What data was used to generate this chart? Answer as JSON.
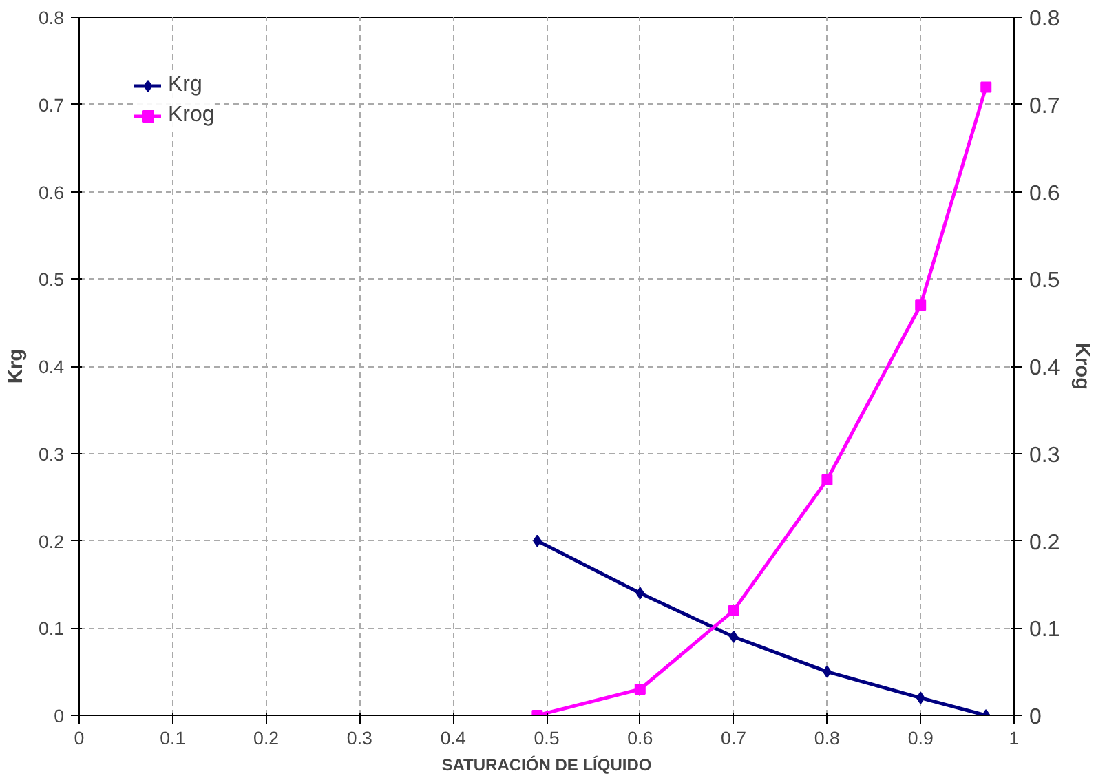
{
  "chart_data": {
    "type": "line",
    "xlabel": "SATURACIÓN DE LÍQUIDO",
    "ylabel": "Krg",
    "y2label": "Krog",
    "x": [
      0.49,
      0.6,
      0.7,
      0.8,
      0.9,
      0.97
    ],
    "series": [
      {
        "name": "Krg",
        "color": "#000080",
        "values": [
          0.2,
          0.14,
          0.09,
          0.05,
          0.02,
          0
        ],
        "marker": "diamond"
      },
      {
        "name": "Krog",
        "color": "#ff00ff",
        "values": [
          0,
          0.03,
          0.12,
          0.27,
          0.47,
          0.72
        ],
        "marker": "square"
      }
    ],
    "xlim": [
      0,
      1
    ],
    "xticks": [
      0,
      0.1,
      0.2,
      0.3,
      0.4,
      0.5,
      0.6,
      0.7,
      0.8,
      0.9,
      1
    ],
    "ylim": [
      0,
      0.8
    ],
    "yticks": [
      0,
      0.1,
      0.2,
      0.3,
      0.4,
      0.5,
      0.6,
      0.7,
      0.8
    ],
    "y2lim": [
      0,
      0.8
    ],
    "y2ticks": [
      0,
      0.1,
      0.2,
      0.3,
      0.4,
      0.5,
      0.6,
      0.7,
      0.8
    ],
    "grid": true,
    "legend": "top left",
    "line_style": "solid"
  }
}
